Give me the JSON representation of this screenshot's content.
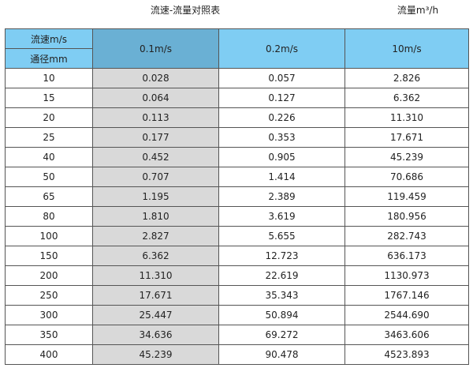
{
  "title": "流速-流量对照表",
  "unit_label": "流量m³/h",
  "header": {
    "velocity_label": "流速m/s",
    "diameter_label": "通径mm",
    "columns": [
      "0.1m/s",
      "0.2m/s",
      "10m/s"
    ]
  },
  "colors": {
    "header": "#7fcdf3",
    "selected_header": "#6ab0d4",
    "selected_column": "#d9d9d9"
  },
  "rows": [
    {
      "dn": "10",
      "values": [
        "0.028",
        "0.057",
        "2.826"
      ]
    },
    {
      "dn": "15",
      "values": [
        "0.064",
        "0.127",
        "6.362"
      ]
    },
    {
      "dn": "20",
      "values": [
        "0.113",
        "0.226",
        "11.310"
      ]
    },
    {
      "dn": "25",
      "values": [
        "0.177",
        "0.353",
        "17.671"
      ]
    },
    {
      "dn": "40",
      "values": [
        "0.452",
        "0.905",
        "45.239"
      ]
    },
    {
      "dn": "50",
      "values": [
        "0.707",
        "1.414",
        "70.686"
      ]
    },
    {
      "dn": "65",
      "values": [
        "1.195",
        "2.389",
        "119.459"
      ]
    },
    {
      "dn": "80",
      "values": [
        "1.810",
        "3.619",
        "180.956"
      ]
    },
    {
      "dn": "100",
      "values": [
        "2.827",
        "5.655",
        "282.743"
      ]
    },
    {
      "dn": "150",
      "values": [
        "6.362",
        "12.723",
        "636.173"
      ]
    },
    {
      "dn": "200",
      "values": [
        "11.310",
        "22.619",
        "1130.973"
      ]
    },
    {
      "dn": "250",
      "values": [
        "17.671",
        "35.343",
        "1767.146"
      ]
    },
    {
      "dn": "300",
      "values": [
        "25.447",
        "50.894",
        "2544.690"
      ]
    },
    {
      "dn": "350",
      "values": [
        "34.636",
        "69.272",
        "3463.606"
      ]
    },
    {
      "dn": "400",
      "values": [
        "45.239",
        "90.478",
        "4523.893"
      ]
    }
  ]
}
